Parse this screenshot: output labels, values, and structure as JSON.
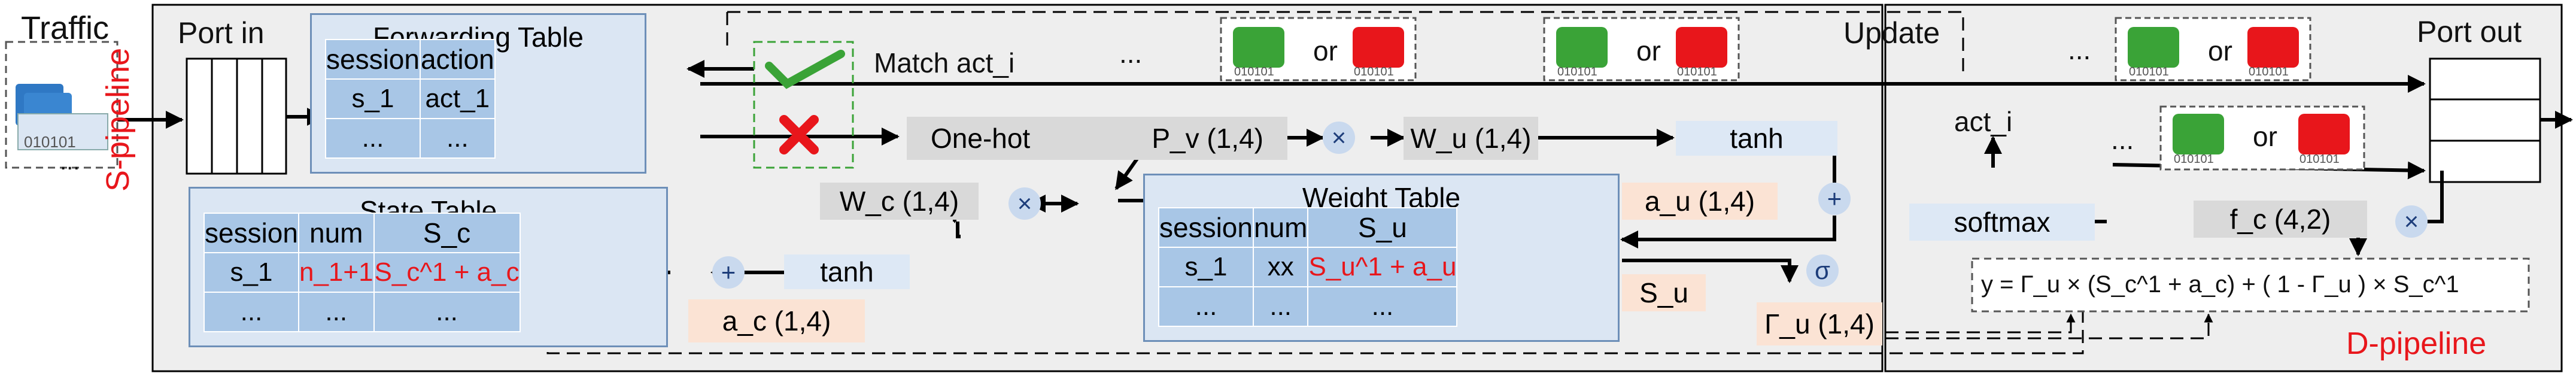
{
  "labels": {
    "traffic": "Traffic",
    "traffic_bits": "010101",
    "traffic_dots": "...",
    "port_in": "Port in",
    "port_out": "Port out",
    "match_act": "Match act_i",
    "update": "Update",
    "s_pipeline": "S-pipeline",
    "d_pipeline": "D-pipeline",
    "dots_top_1": "...",
    "dots_top_2": "...",
    "dots_top_3": "...",
    "dots_mid": "...",
    "or_word": "or",
    "packet_bits": "010101",
    "act_i": "act_i",
    "softmax": "softmax",
    "fc": "f_c (4,2)",
    "sigma": "σ",
    "su_label": "S_u",
    "gamma": "Γ_u    (1,4)",
    "plus": "+",
    "times": "×"
  },
  "forwarding_table": {
    "title": "Forwarding Table",
    "headers": [
      "session",
      "action"
    ],
    "rows": [
      [
        "s_1",
        "act_1"
      ],
      [
        "...",
        "..."
      ]
    ]
  },
  "state_table": {
    "title": "State Table",
    "headers": [
      "session",
      "num",
      "S_c"
    ],
    "rows": [
      [
        "s_1",
        "n_1+1",
        "S_c^1 + a_c"
      ],
      [
        "...",
        "...",
        "..."
      ]
    ]
  },
  "weight_table": {
    "title": "Weight Table",
    "headers": [
      "session",
      "num",
      "S_u"
    ],
    "rows": [
      [
        "s_1",
        "xx",
        "S_u^1 + a_u"
      ],
      [
        "...",
        "...",
        "..."
      ]
    ]
  },
  "ops": {
    "onehot": "One-hot",
    "pv": "P_v (1,4)",
    "wu": "W_u (1,4)",
    "tanh_top": "tanh",
    "au": "a_u (1,4)",
    "wc": "W_c (1,4)",
    "tanh_bottom": "tanh",
    "ac": "a_c (1,4)"
  },
  "formula": "y  =  Γ_u  ×  (S_c^1 + a_c)  +  ( 1  -  Γ_u )  ×  S_c^1",
  "colors": {
    "pipeline_bg": "#eeeeee",
    "table_bg": "#dbe6f3",
    "table_cell": "#a8c6e6",
    "op_gray": "#d9d9d9",
    "op_blue": "#dde8f5",
    "op_peach": "#fbe3d4",
    "check_green": "#3aa337",
    "cross_red": "#e8161b",
    "label_red": "#e8161b"
  },
  "icons": [
    "packet-stack-icon",
    "check-icon",
    "cross-icon",
    "green-packet-icon",
    "red-packet-icon"
  ]
}
